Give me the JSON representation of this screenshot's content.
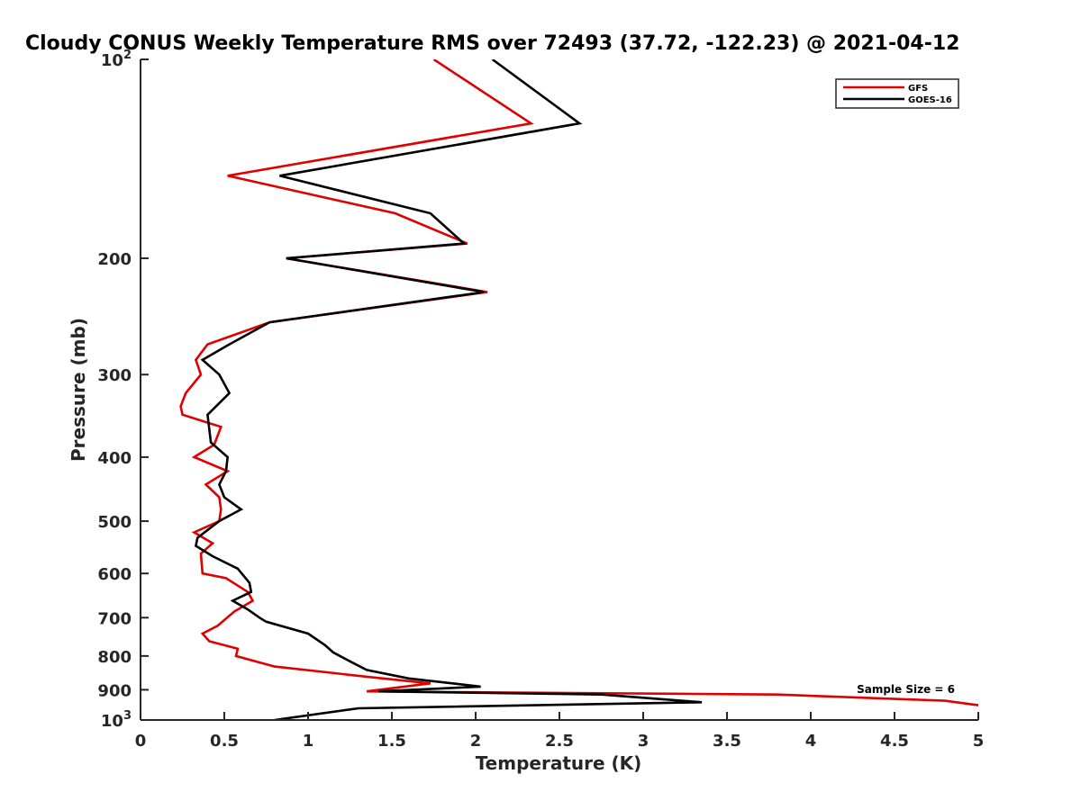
{
  "chart_data": {
    "type": "line",
    "title": "Cloudy CONUS Weekly Temperature RMS over 72493 (37.72, -122.23) @ 2021-04-12",
    "xlabel": "Temperature (K)",
    "ylabel": "Pressure (mb)",
    "xlim": [
      0,
      5
    ],
    "ylim": [
      100,
      1000
    ],
    "y_scale": "log",
    "y_reversed": true,
    "x_ticks": [
      0,
      0.5,
      1,
      1.5,
      2,
      2.5,
      3,
      3.5,
      4,
      4.5,
      5
    ],
    "x_tick_labels": [
      "0",
      "0.5",
      "1",
      "1.5",
      "2",
      "2.5",
      "3",
      "3.5",
      "4",
      "4.5",
      "5"
    ],
    "y_ticks": [
      100,
      200,
      300,
      400,
      500,
      600,
      700,
      800,
      900,
      1000
    ],
    "y_tick_labels": [
      "10^2",
      "200",
      "300",
      "400",
      "500",
      "600",
      "700",
      "800",
      "900",
      "10^3"
    ],
    "grid": false,
    "legend_position": "top-right",
    "annotation": "Sample Size = 6",
    "series": [
      {
        "name": "GFS",
        "color": "#e00000",
        "points": [
          [
            1.75,
            100
          ],
          [
            2.33,
            125
          ],
          [
            0.52,
            150
          ],
          [
            1.52,
            171
          ],
          [
            1.95,
            190
          ],
          [
            0.87,
            200
          ],
          [
            2.07,
            225
          ],
          [
            0.77,
            250
          ],
          [
            0.4,
            270
          ],
          [
            0.33,
            285
          ],
          [
            0.36,
            300
          ],
          [
            0.27,
            320
          ],
          [
            0.24,
            335
          ],
          [
            0.25,
            345
          ],
          [
            0.48,
            360
          ],
          [
            0.44,
            383
          ],
          [
            0.32,
            400
          ],
          [
            0.52,
            420
          ],
          [
            0.39,
            440
          ],
          [
            0.47,
            460
          ],
          [
            0.48,
            480
          ],
          [
            0.47,
            500
          ],
          [
            0.32,
            520
          ],
          [
            0.43,
            540
          ],
          [
            0.36,
            560
          ],
          [
            0.37,
            600
          ],
          [
            0.51,
            610
          ],
          [
            0.64,
            640
          ],
          [
            0.67,
            660
          ],
          [
            0.56,
            685
          ],
          [
            0.46,
            720
          ],
          [
            0.37,
            740
          ],
          [
            0.41,
            760
          ],
          [
            0.58,
            780
          ],
          [
            0.57,
            800
          ],
          [
            0.8,
            830
          ],
          [
            1.35,
            860
          ],
          [
            1.73,
            880
          ],
          [
            1.35,
            905
          ],
          [
            2.5,
            910
          ],
          [
            3.8,
            915
          ],
          [
            4.8,
            935
          ],
          [
            5.0,
            950
          ]
        ]
      },
      {
        "name": "GOES-16",
        "color": "#000000",
        "points": [
          [
            2.1,
            100
          ],
          [
            2.62,
            125
          ],
          [
            0.83,
            150
          ],
          [
            1.73,
            171
          ],
          [
            1.93,
            190
          ],
          [
            0.87,
            200
          ],
          [
            2.05,
            225
          ],
          [
            0.77,
            250
          ],
          [
            0.53,
            270
          ],
          [
            0.37,
            285
          ],
          [
            0.47,
            300
          ],
          [
            0.53,
            320
          ],
          [
            0.4,
            345
          ],
          [
            0.42,
            380
          ],
          [
            0.52,
            400
          ],
          [
            0.51,
            420
          ],
          [
            0.47,
            440
          ],
          [
            0.5,
            460
          ],
          [
            0.6,
            480
          ],
          [
            0.47,
            500
          ],
          [
            0.34,
            530
          ],
          [
            0.33,
            545
          ],
          [
            0.43,
            565
          ],
          [
            0.58,
            590
          ],
          [
            0.65,
            620
          ],
          [
            0.66,
            640
          ],
          [
            0.55,
            660
          ],
          [
            0.64,
            680
          ],
          [
            0.71,
            700
          ],
          [
            0.75,
            710
          ],
          [
            1.0,
            740
          ],
          [
            1.1,
            770
          ],
          [
            1.15,
            790
          ],
          [
            1.25,
            815
          ],
          [
            1.35,
            840
          ],
          [
            1.6,
            865
          ],
          [
            2.03,
            890
          ],
          [
            1.42,
            905
          ],
          [
            2.75,
            915
          ],
          [
            3.35,
            940
          ],
          [
            1.3,
            960
          ],
          [
            0.8,
            1000
          ]
        ]
      }
    ]
  }
}
